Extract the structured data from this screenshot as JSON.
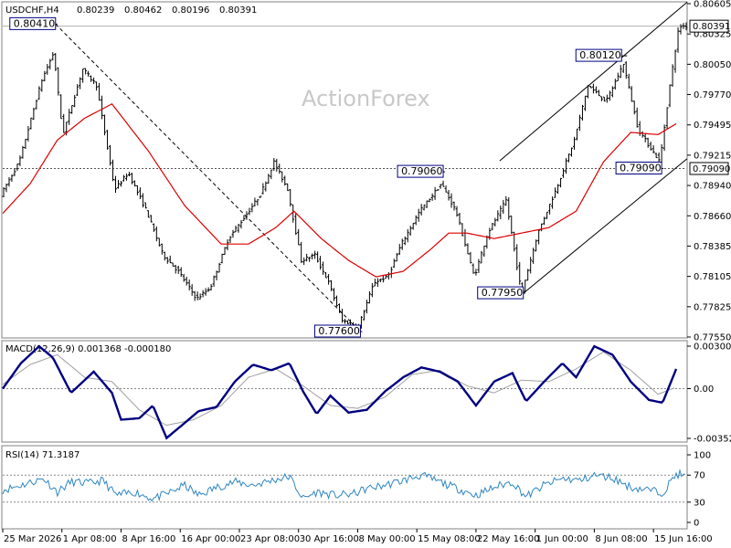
{
  "chart_data": {
    "type": "candlestick",
    "price_panel": {
      "symbol_header": "USDCHF,H4",
      "ohlc_header": [
        "0.80239",
        "0.80462",
        "0.80196",
        "0.80391"
      ],
      "watermark": "ActionForex",
      "y_ticks": [
        "0.80605",
        "0.80325",
        "0.80050",
        "0.79770",
        "0.79495",
        "0.79215",
        "0.78940",
        "0.78660",
        "0.78385",
        "0.78105",
        "0.77825",
        "0.77550"
      ],
      "ylim": [
        0.7755,
        0.80605
      ],
      "current_price": "0.80391",
      "current_price_value": 0.80391,
      "level_line": "0.79090",
      "level_line_value": 0.7909,
      "annotations": [
        {
          "text": "0.80410",
          "price": 0.8041,
          "bar": 58
        },
        {
          "text": "0.77600",
          "price": 0.776,
          "bar": 393
        },
        {
          "text": "0.79060",
          "price": 0.7906,
          "bar": 484
        },
        {
          "text": "0.77950",
          "price": 0.7795,
          "bar": 572
        },
        {
          "text": "0.80120",
          "price": 0.8012,
          "bar": 684
        },
        {
          "text": "0.79090",
          "price": 0.7909,
          "bar": 724
        }
      ],
      "trend_lines": [
        {
          "style": "dashed",
          "from": {
            "bar": 58,
            "price": 0.8041
          },
          "to": {
            "bar": 393,
            "price": 0.776
          }
        },
        {
          "style": "solid",
          "from": {
            "bar": 572,
            "price": 0.7795
          },
          "to": {
            "bar": 752,
            "price": 0.7918
          }
        },
        {
          "style": "solid",
          "from": {
            "bar": 546,
            "price": 0.7916
          },
          "to": {
            "bar": 752,
            "price": 0.8061
          }
        }
      ],
      "close_series": {
        "bars": [
          0,
          20,
          45,
          58,
          68,
          90,
          105,
          125,
          140,
          160,
          178,
          195,
          215,
          230,
          250,
          268,
          285,
          300,
          315,
          330,
          345,
          360,
          375,
          393,
          410,
          425,
          440,
          460,
          484,
          500,
          520,
          535,
          555,
          572,
          590,
          610,
          630,
          645,
          665,
          684,
          700,
          712,
          724,
          735,
          745
        ],
        "values": [
          0.7885,
          0.7915,
          0.799,
          0.8015,
          0.794,
          0.8,
          0.7985,
          0.789,
          0.7905,
          0.787,
          0.783,
          0.7815,
          0.779,
          0.78,
          0.7845,
          0.7865,
          0.7885,
          0.7915,
          0.789,
          0.7825,
          0.783,
          0.7805,
          0.777,
          0.7765,
          0.7805,
          0.781,
          0.784,
          0.787,
          0.7895,
          0.787,
          0.781,
          0.785,
          0.788,
          0.7795,
          0.785,
          0.789,
          0.7935,
          0.7985,
          0.797,
          0.8005,
          0.7945,
          0.793,
          0.7915,
          0.7985,
          0.8039
        ]
      },
      "moving_average": {
        "bars": [
          0,
          30,
          60,
          90,
          120,
          160,
          200,
          240,
          270,
          300,
          320,
          350,
          380,
          410,
          440,
          470,
          490,
          510,
          540,
          570,
          600,
          630,
          660,
          690,
          720,
          740
        ],
        "values": [
          0.7868,
          0.7895,
          0.7935,
          0.7955,
          0.7968,
          0.7925,
          0.7875,
          0.784,
          0.784,
          0.7855,
          0.787,
          0.7845,
          0.7825,
          0.781,
          0.7815,
          0.7835,
          0.785,
          0.785,
          0.7845,
          0.785,
          0.7855,
          0.787,
          0.7915,
          0.7942,
          0.794,
          0.795
        ]
      }
    },
    "macd_panel": {
      "label": "MACD(12,26,9) 0.001368 -0.000180",
      "y_ticks": [
        "0.003009",
        "0.00",
        "-0.003528"
      ],
      "ylim": [
        -0.003528,
        0.003009
      ],
      "macd_line": {
        "bars": [
          0,
          20,
          40,
          55,
          75,
          100,
          120,
          130,
          150,
          165,
          180,
          195,
          215,
          235,
          255,
          275,
          295,
          315,
          330,
          345,
          360,
          380,
          400,
          420,
          440,
          460,
          480,
          500,
          520,
          540,
          560,
          575,
          595,
          615,
          630,
          650,
          670,
          690,
          710,
          725,
          740
        ],
        "values": [
          0.0,
          0.0018,
          0.003,
          0.0022,
          -0.0003,
          0.0012,
          -0.0003,
          -0.0022,
          -0.0021,
          -0.0012,
          -0.0035,
          -0.0027,
          -0.0016,
          -0.0013,
          0.0005,
          0.0017,
          0.0013,
          0.0018,
          -0.0002,
          -0.0018,
          -0.0005,
          -0.0017,
          -0.0015,
          -0.0002,
          0.0008,
          0.0015,
          0.0012,
          0.0005,
          -0.0012,
          0.0005,
          0.0011,
          -0.0009,
          0.0005,
          0.0018,
          0.0008,
          0.003,
          0.0024,
          0.0005,
          -0.0008,
          -0.001,
          0.0014
        ]
      },
      "signal_line": {
        "bars": [
          0,
          30,
          60,
          90,
          120,
          150,
          180,
          210,
          240,
          270,
          300,
          330,
          360,
          390,
          420,
          450,
          480,
          510,
          540,
          570,
          600,
          630,
          660,
          690,
          720,
          740
        ],
        "values": [
          0.0003,
          0.0017,
          0.0024,
          0.0008,
          0.0005,
          -0.0015,
          -0.0026,
          -0.0022,
          -0.0012,
          0.0008,
          0.0014,
          0.0002,
          -0.0012,
          -0.0014,
          -0.0006,
          0.001,
          0.0013,
          0.0002,
          -0.0003,
          0.0006,
          0.0005,
          0.0014,
          0.0026,
          0.0013,
          -0.0004,
          0.0001
        ]
      }
    },
    "rsi_panel": {
      "label": "RSI(14) 71.3187",
      "y_ticks": [
        "100",
        "70",
        "30",
        "0"
      ],
      "ylim": [
        0,
        100
      ],
      "levels": [
        70,
        30
      ],
      "rsi_line": {
        "bars": [
          0,
          20,
          45,
          60,
          75,
          95,
          110,
          125,
          145,
          165,
          180,
          200,
          215,
          235,
          255,
          275,
          295,
          315,
          330,
          345,
          365,
          385,
          400,
          420,
          440,
          460,
          480,
          500,
          520,
          540,
          560,
          575,
          595,
          615,
          635,
          650,
          670,
          690,
          710,
          725,
          740
        ],
        "values": [
          48,
          55,
          65,
          45,
          60,
          58,
          62,
          40,
          45,
          35,
          42,
          55,
          40,
          52,
          60,
          55,
          62,
          68,
          35,
          45,
          40,
          42,
          50,
          55,
          62,
          70,
          60,
          50,
          40,
          52,
          60,
          38,
          55,
          65,
          62,
          70,
          66,
          52,
          48,
          44,
          71.3
        ]
      }
    },
    "x_ticks": [
      {
        "label": "25 Mar 2026",
        "bar": 0
      },
      {
        "label": "1 Apr 08:00",
        "bar": 65
      },
      {
        "label": "8 Apr 16:00",
        "bar": 130
      },
      {
        "label": "16 Apr 00:00",
        "bar": 195
      },
      {
        "label": "23 Apr 08:00",
        "bar": 260
      },
      {
        "label": "30 Apr 16:00",
        "bar": 325
      },
      {
        "label": "8 May 00:00",
        "bar": 390
      },
      {
        "label": "15 May 08:00",
        "bar": 455
      },
      {
        "label": "22 May 16:00",
        "bar": 520
      },
      {
        "label": "1 Jun 00:00",
        "bar": 585
      },
      {
        "label": "8 Jun 08:00",
        "bar": 650
      },
      {
        "label": "15 Jun 16:00",
        "bar": 715
      }
    ],
    "colors": {
      "candles": "#000000",
      "moving_average": "#dd0000",
      "macd": "#000080",
      "signal": "#a0a0a0",
      "rsi": "#2e86c1",
      "level_line": "#555555"
    }
  }
}
